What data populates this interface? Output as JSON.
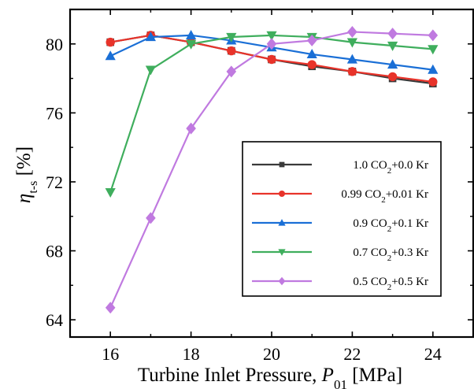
{
  "chart_data": {
    "type": "line",
    "xlabel": "Turbine Inlet Pressure, P01 [MPa]",
    "xlabel_parts": {
      "text": "Turbine Inlet Pressure, ",
      "var": "P",
      "sub": "01",
      "unit": " [MPa]"
    },
    "ylabel": "ηt-s [%]",
    "ylabel_parts": {
      "var": "η",
      "sub": "t-s",
      "unit": " [%]"
    },
    "xlim": [
      15,
      25
    ],
    "ylim": [
      63,
      82
    ],
    "x_ticks": [
      16,
      18,
      20,
      22,
      24
    ],
    "y_ticks": [
      64,
      68,
      72,
      76,
      80
    ],
    "grid": false,
    "legend_position": "center-right",
    "x": [
      16,
      17,
      18,
      19,
      20,
      21,
      22,
      23,
      24
    ],
    "series": [
      {
        "name": "1.0 CO2+0.0 Kr",
        "label_parts": [
          "1.0 CO",
          "2",
          "+0.0 Kr"
        ],
        "color": "#3a3a3a",
        "marker": "square",
        "values": [
          80.1,
          80.5,
          80.1,
          79.6,
          79.1,
          78.7,
          78.4,
          78.0,
          77.7
        ]
      },
      {
        "name": "0.99 CO2+0.01 Kr",
        "label_parts": [
          "0.99 CO",
          "2",
          "+0.01 Kr"
        ],
        "color": "#e8332a",
        "marker": "circle",
        "values": [
          80.1,
          80.5,
          80.1,
          79.6,
          79.1,
          78.8,
          78.4,
          78.1,
          77.8
        ]
      },
      {
        "name": "0.9 CO2+0.1 Kr",
        "label_parts": [
          "0.9 CO",
          "2",
          "+0.1 Kr"
        ],
        "color": "#1a6fd6",
        "marker": "triangle-up",
        "values": [
          79.3,
          80.4,
          80.5,
          80.2,
          79.8,
          79.4,
          79.1,
          78.8,
          78.5
        ]
      },
      {
        "name": "0.7 CO2+0.3 Kr",
        "label_parts": [
          "0.7 CO",
          "2",
          "+0.3 Kr"
        ],
        "color": "#3fae5d",
        "marker": "triangle-down",
        "values": [
          71.4,
          78.5,
          80.0,
          80.4,
          80.5,
          80.4,
          80.1,
          79.9,
          79.7
        ]
      },
      {
        "name": "0.5 CO2+0.5 Kr",
        "label_parts": [
          "0.5 CO",
          "2",
          "+0.5 Kr"
        ],
        "color": "#c07ae0",
        "marker": "diamond",
        "values": [
          64.7,
          69.9,
          75.1,
          78.4,
          80.0,
          80.2,
          80.7,
          80.6,
          80.5
        ]
      }
    ]
  }
}
